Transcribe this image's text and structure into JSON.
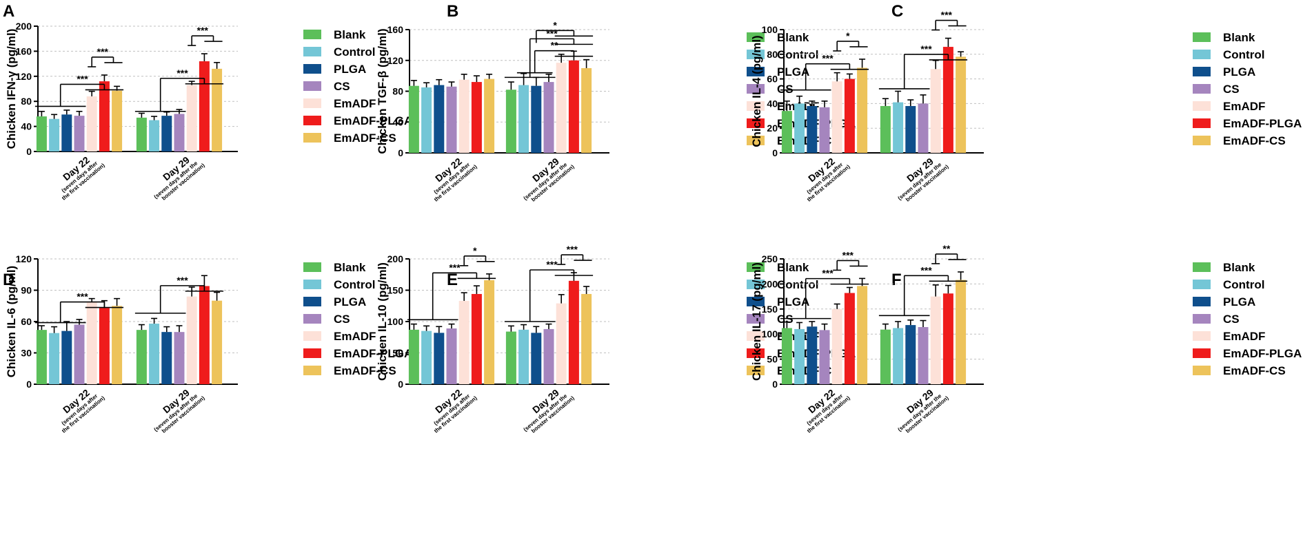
{
  "legend": [
    {
      "name": "Blank",
      "color": "#5cbf5a"
    },
    {
      "name": "Control",
      "color": "#74c6d6"
    },
    {
      "name": "PLGA",
      "color": "#0f4f8c"
    },
    {
      "name": "CS",
      "color": "#a585be"
    },
    {
      "name": "EmADF",
      "color": "#fde1d8"
    },
    {
      "name": "EmADF-PLGA",
      "color": "#ef1c1c"
    },
    {
      "name": "EmADF-CS",
      "color": "#edc35b"
    }
  ],
  "category_labels": [
    {
      "main": "Day 22",
      "sub1": "(seven days after",
      "sub2": "the first vaccination)"
    },
    {
      "main": "Day 29",
      "sub1": "(seven days after the",
      "sub2": "booster vaccination)"
    }
  ],
  "chart_data": [
    {
      "type": "bar",
      "panel": "A",
      "ylabel": "Chicken IFN-γ (pg/ml)",
      "ylim": [
        0,
        200
      ],
      "yticks": [
        0,
        40,
        80,
        120,
        160,
        200
      ],
      "categories": [
        "Day 22",
        "Day 29"
      ],
      "series": [
        {
          "name": "Blank",
          "values": [
            56,
            54
          ],
          "errors": [
            8,
            7
          ]
        },
        {
          "name": "Control",
          "values": [
            52,
            50
          ],
          "errors": [
            7,
            6
          ]
        },
        {
          "name": "PLGA",
          "values": [
            59,
            57
          ],
          "errors": [
            7,
            6
          ]
        },
        {
          "name": "CS",
          "values": [
            57,
            60
          ],
          "errors": [
            7,
            7
          ]
        },
        {
          "name": "EmADF",
          "values": [
            88,
            106
          ],
          "errors": [
            8,
            6
          ]
        },
        {
          "name": "EmADF-PLGA",
          "values": [
            112,
            144
          ],
          "errors": [
            10,
            12
          ]
        },
        {
          "name": "EmADF-CS",
          "values": [
            97,
            132
          ],
          "errors": [
            7,
            10
          ]
        }
      ],
      "significance": [
        "***",
        "***",
        "***",
        "***"
      ]
    },
    {
      "type": "bar",
      "panel": "B",
      "ylabel": "Chicken TGF-β (pg/ml)",
      "ylim": [
        0,
        160
      ],
      "yticks": [
        0,
        40,
        80,
        120,
        160
      ],
      "categories": [
        "Day 22",
        "Day 29"
      ],
      "series": [
        {
          "name": "Blank",
          "values": [
            87,
            82
          ],
          "errors": [
            7,
            10
          ]
        },
        {
          "name": "Control",
          "values": [
            85,
            88
          ],
          "errors": [
            6,
            15
          ]
        },
        {
          "name": "PLGA",
          "values": [
            88,
            87
          ],
          "errors": [
            7,
            11
          ]
        },
        {
          "name": "CS",
          "values": [
            86,
            92
          ],
          "errors": [
            6,
            10
          ]
        },
        {
          "name": "EmADF",
          "values": [
            95,
            117
          ],
          "errors": [
            7,
            11
          ]
        },
        {
          "name": "EmADF-PLGA",
          "values": [
            92,
            120
          ],
          "errors": [
            8,
            12
          ]
        },
        {
          "name": "EmADF-CS",
          "values": [
            96,
            110
          ],
          "errors": [
            6,
            11
          ]
        }
      ],
      "significance": [
        "***",
        "**",
        "*"
      ]
    },
    {
      "type": "bar",
      "panel": "C",
      "ylabel": "Chicken IL-4 (pg/ml)",
      "ylim": [
        0,
        100
      ],
      "yticks": [
        0,
        20,
        40,
        60,
        80,
        100
      ],
      "categories": [
        "Day 22",
        "Day 29"
      ],
      "series": [
        {
          "name": "Blank",
          "values": [
            34,
            38
          ],
          "errors": [
            8,
            6
          ]
        },
        {
          "name": "Control",
          "values": [
            40,
            41
          ],
          "errors": [
            6,
            9
          ]
        },
        {
          "name": "PLGA",
          "values": [
            38,
            38
          ],
          "errors": [
            4,
            5
          ]
        },
        {
          "name": "CS",
          "values": [
            37,
            40
          ],
          "errors": [
            5,
            7
          ]
        },
        {
          "name": "EmADF",
          "values": [
            58,
            68
          ],
          "errors": [
            7,
            7
          ]
        },
        {
          "name": "EmADF-PLGA",
          "values": [
            60,
            86
          ],
          "errors": [
            4,
            7
          ]
        },
        {
          "name": "EmADF-CS",
          "values": [
            69,
            78
          ],
          "errors": [
            7,
            4
          ]
        }
      ],
      "significance": [
        "***",
        "*",
        "***",
        "***"
      ]
    },
    {
      "type": "bar",
      "panel": "D",
      "ylabel": "Chicken IL-6 (pg/ml)",
      "ylim": [
        0,
        120
      ],
      "yticks": [
        0,
        30,
        60,
        90,
        120
      ],
      "categories": [
        "Day 22",
        "Day 29"
      ],
      "series": [
        {
          "name": "Blank",
          "values": [
            52,
            52
          ],
          "errors": [
            4,
            5
          ]
        },
        {
          "name": "Control",
          "values": [
            49,
            58
          ],
          "errors": [
            6,
            5
          ]
        },
        {
          "name": "PLGA",
          "values": [
            51,
            50
          ],
          "errors": [
            9,
            5
          ]
        },
        {
          "name": "CS",
          "values": [
            57,
            50
          ],
          "errors": [
            5,
            6
          ]
        },
        {
          "name": "EmADF",
          "values": [
            79,
            84
          ],
          "errors": [
            3,
            9
          ]
        },
        {
          "name": "EmADF-PLGA",
          "values": [
            73,
            94
          ],
          "errors": [
            7,
            10
          ]
        },
        {
          "name": "EmADF-CS",
          "values": [
            75,
            80
          ],
          "errors": [
            7,
            8
          ]
        }
      ],
      "significance": [
        "***",
        "***"
      ]
    },
    {
      "type": "bar",
      "panel": "E",
      "ylabel": "Chicken IL-10 (pg/ml)",
      "ylim": [
        0,
        200
      ],
      "yticks": [
        0,
        50,
        100,
        150,
        200
      ],
      "categories": [
        "Day 22",
        "Day 29"
      ],
      "series": [
        {
          "name": "Blank",
          "values": [
            87,
            84
          ],
          "errors": [
            9,
            9
          ]
        },
        {
          "name": "Control",
          "values": [
            85,
            87
          ],
          "errors": [
            8,
            8
          ]
        },
        {
          "name": "PLGA",
          "values": [
            82,
            82
          ],
          "errors": [
            10,
            10
          ]
        },
        {
          "name": "CS",
          "values": [
            89,
            88
          ],
          "errors": [
            7,
            8
          ]
        },
        {
          "name": "EmADF",
          "values": [
            133,
            129
          ],
          "errors": [
            13,
            14
          ]
        },
        {
          "name": "EmADF-PLGA",
          "values": [
            144,
            165
          ],
          "errors": [
            13,
            13
          ]
        },
        {
          "name": "EmADF-CS",
          "values": [
            166,
            144
          ],
          "errors": [
            10,
            12
          ]
        }
      ],
      "significance": [
        "***",
        "*",
        "***",
        "***"
      ]
    },
    {
      "type": "bar",
      "panel": "F",
      "ylabel": "Chicken IL-17 (pg/ml)",
      "ylim": [
        0,
        250
      ],
      "yticks": [
        0,
        50,
        100,
        150,
        200,
        250
      ],
      "categories": [
        "Day 22",
        "Day 29"
      ],
      "series": [
        {
          "name": "Blank",
          "values": [
            112,
            109
          ],
          "errors": [
            12,
            11
          ]
        },
        {
          "name": "Control",
          "values": [
            110,
            112
          ],
          "errors": [
            13,
            13
          ]
        },
        {
          "name": "PLGA",
          "values": [
            115,
            118
          ],
          "errors": [
            10,
            10
          ]
        },
        {
          "name": "CS",
          "values": [
            108,
            114
          ],
          "errors": [
            12,
            13
          ]
        },
        {
          "name": "EmADF",
          "values": [
            150,
            175
          ],
          "errors": [
            10,
            23
          ]
        },
        {
          "name": "EmADF-PLGA",
          "values": [
            182,
            181
          ],
          "errors": [
            11,
            16
          ]
        },
        {
          "name": "EmADF-CS",
          "values": [
            196,
            208
          ],
          "errors": [
            15,
            16
          ]
        }
      ],
      "significance": [
        "***",
        "***",
        "***",
        "**"
      ]
    }
  ]
}
